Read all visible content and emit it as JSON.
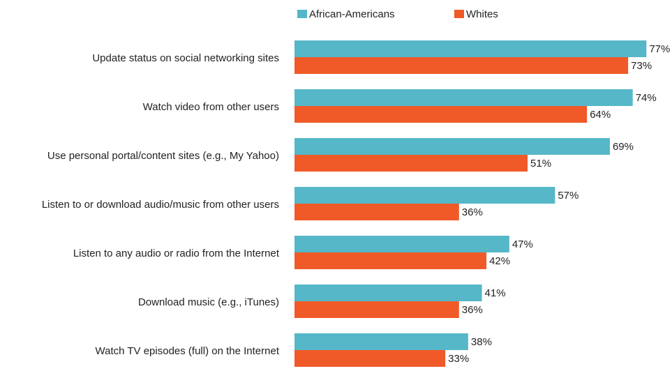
{
  "colors": {
    "african_americans": "#55b7c7",
    "whites": "#f05a28",
    "text": "#222222"
  },
  "chart_data": {
    "type": "bar",
    "orientation": "horizontal",
    "title": "",
    "xlabel": "",
    "ylabel": "",
    "xlim": [
      0,
      100
    ],
    "legend_placement": "top",
    "grid": false,
    "value_suffix": "%",
    "categories": [
      "Update status on social networking sites",
      "Watch video from other users",
      "Use personal portal/content sites (e.g., My Yahoo)",
      "Listen to or download audio/music from other users",
      "Listen to any audio or radio from the Internet",
      "Download music (e.g., iTunes)",
      "Watch TV episodes (full) on the Internet"
    ],
    "series": [
      {
        "name": "African-Americans",
        "color": "#55b7c7",
        "values": [
          77,
          74,
          69,
          57,
          47,
          41,
          38
        ]
      },
      {
        "name": "Whites",
        "color": "#f05a28",
        "values": [
          73,
          64,
          51,
          36,
          42,
          36,
          33
        ]
      }
    ]
  }
}
